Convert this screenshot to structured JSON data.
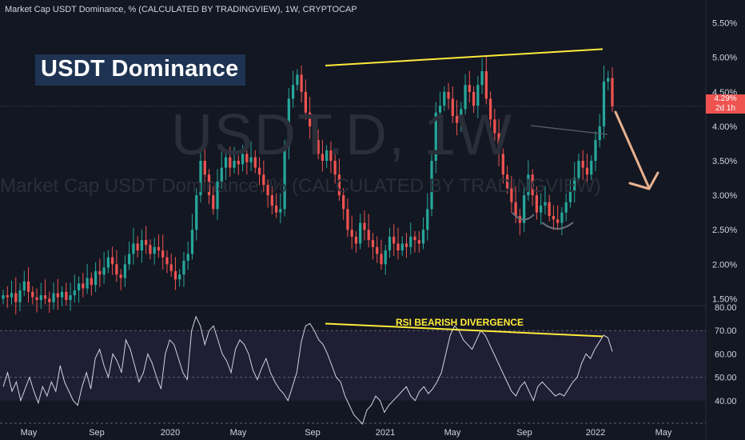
{
  "header": {
    "title": "Market Cap USDT Dominance, % (CALCULATED BY TRADINGVIEW), 1W, CRYPTOCAP"
  },
  "annotations": {
    "badge": "USDT Dominance",
    "watermark_symbol": "USDT.D, 1W",
    "watermark_desc": "Market Cap USDT Dominance, % (CALCULATED BY TRADINGVIEW)",
    "rsi_note": "RSI BEARISH DIVERGENCE"
  },
  "price_tag": {
    "value": "4.29%",
    "countdown": "2d 1h"
  },
  "colors": {
    "background": "#131722",
    "up": "#26a69a",
    "down": "#ef5350",
    "trendline": "#ffeb3b",
    "arrow": "#e8b18f",
    "rsi_line": "#d1d4dc",
    "rsi_band": "#2a2445"
  },
  "chart_data": [
    {
      "type": "candlestick",
      "title": "Market Cap USDT Dominance, % (CALCULATED BY TRADINGVIEW), 1W, CRYPTOCAP",
      "y_axis_labels": [
        "5.50%",
        "5.00%",
        "4.50%",
        "4.00%",
        "3.50%",
        "3.00%",
        "2.50%",
        "2.00%",
        "1.50%"
      ],
      "ylim": [
        1.5,
        5.5
      ],
      "x_axis_labels": [
        "May",
        "Sep",
        "2020",
        "May",
        "Sep",
        "2021",
        "May",
        "Sep",
        "2022",
        "May"
      ],
      "last_value": 4.29,
      "closes": [
        1.55,
        1.52,
        1.58,
        1.45,
        1.62,
        1.75,
        1.6,
        1.52,
        1.48,
        1.55,
        1.5,
        1.45,
        1.58,
        1.52,
        1.6,
        1.48,
        1.55,
        1.62,
        1.72,
        1.65,
        1.8,
        1.7,
        1.9,
        1.85,
        1.95,
        2.1,
        2.0,
        1.85,
        1.8,
        2.0,
        2.15,
        2.3,
        2.2,
        2.35,
        2.28,
        2.15,
        2.25,
        2.2,
        2.1,
        2.0,
        1.9,
        1.78,
        1.85,
        2.05,
        2.15,
        2.5,
        3.0,
        3.5,
        3.3,
        3.0,
        2.8,
        3.2,
        3.4,
        3.55,
        3.4,
        3.5,
        3.45,
        3.6,
        3.48,
        3.55,
        3.4,
        3.3,
        3.15,
        3.0,
        2.85,
        2.75,
        2.8,
        3.7,
        4.4,
        4.6,
        4.75,
        4.5,
        4.2,
        4.0,
        3.8,
        3.6,
        3.5,
        3.65,
        3.5,
        3.3,
        3.0,
        2.8,
        2.5,
        2.4,
        2.3,
        2.6,
        2.5,
        2.35,
        2.25,
        2.15,
        2.0,
        2.2,
        2.4,
        2.3,
        2.2,
        2.3,
        2.25,
        2.4,
        2.35,
        2.3,
        2.5,
        2.8,
        3.5,
        4.2,
        4.3,
        4.5,
        4.4,
        4.15,
        4.05,
        4.25,
        4.6,
        4.5,
        4.3,
        4.6,
        4.8,
        4.4,
        4.1,
        3.9,
        3.6,
        3.3,
        3.1,
        2.9,
        2.7,
        2.6,
        3.0,
        3.3,
        3.0,
        2.75,
        2.85,
        2.9,
        2.7,
        2.65,
        2.6,
        2.75,
        2.9,
        3.05,
        3.25,
        3.5,
        3.4,
        3.3,
        3.5,
        3.8,
        4.0,
        4.65,
        4.7,
        4.29
      ],
      "annotations": {
        "resistance_line": [
          [
            4.88
          ],
          [
            5.12
          ]
        ],
        "arrow_target": 3.0
      }
    },
    {
      "type": "line",
      "title": "RSI",
      "y_axis_labels": [
        "80.00",
        "70.00",
        "60.00",
        "50.00",
        "40.00"
      ],
      "ylim": [
        30,
        80
      ],
      "band": [
        40,
        70
      ],
      "values": [
        46,
        52,
        44,
        48,
        40,
        45,
        50,
        44,
        39,
        46,
        42,
        48,
        44,
        55,
        48,
        44,
        40,
        38,
        46,
        52,
        45,
        58,
        62,
        55,
        50,
        60,
        57,
        52,
        66,
        62,
        55,
        48,
        52,
        60,
        56,
        50,
        45,
        60,
        66,
        64,
        58,
        52,
        49,
        70,
        76,
        72,
        64,
        70,
        72,
        66,
        60,
        57,
        52,
        62,
        66,
        64,
        60,
        53,
        49,
        54,
        58,
        52,
        48,
        45,
        43,
        40,
        46,
        52,
        65,
        72,
        73,
        70,
        66,
        64,
        60,
        55,
        50,
        48,
        42,
        38,
        34,
        32,
        30,
        36,
        38,
        42,
        40,
        35,
        38,
        40,
        42,
        44,
        46,
        42,
        40,
        44,
        46,
        43,
        45,
        48,
        52,
        60,
        68,
        72,
        70,
        66,
        64,
        62,
        66,
        70,
        68,
        64,
        60,
        56,
        52,
        48,
        44,
        42,
        46,
        48,
        44,
        40,
        46,
        48,
        46,
        44,
        42,
        43,
        42,
        45,
        48,
        50,
        56,
        60,
        58,
        62,
        65,
        68,
        67,
        61
      ]
    }
  ]
}
